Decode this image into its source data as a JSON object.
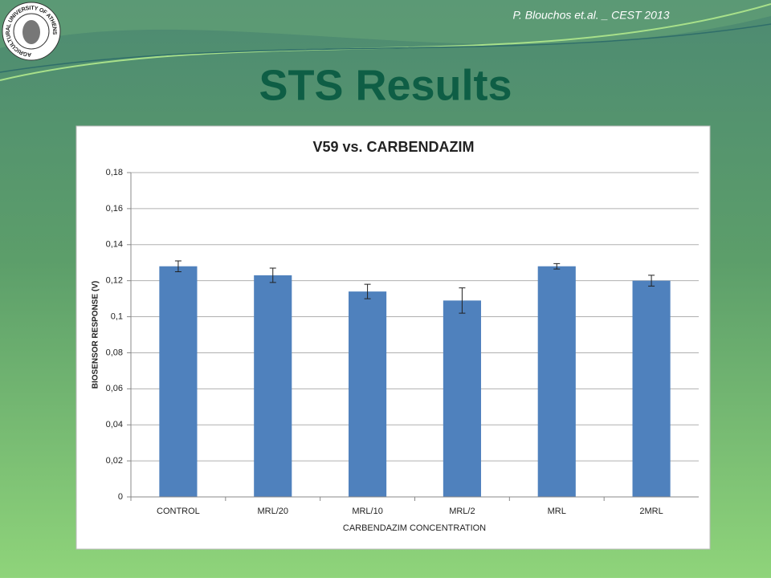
{
  "slide": {
    "author_note": "P. Blouchos et.al. _  CEST 2013",
    "title": "STS Results",
    "logo_text": "AGRICULTURAL UNIVERSITY OF ATHENS"
  },
  "chart_data": {
    "type": "bar",
    "title": "V59 vs. CARBENDAZIM",
    "xlabel": "CARBENDAZIM CONCENTRATION",
    "ylabel": "BIOSENSOR RESPONSE (V)",
    "categories": [
      "CONTROL",
      "MRL/20",
      "MRL/10",
      "MRL/2",
      "MRL",
      "2MRL"
    ],
    "values": [
      0.128,
      0.123,
      0.114,
      0.109,
      0.128,
      0.12
    ],
    "errors": [
      0.003,
      0.004,
      0.004,
      0.007,
      0.0015,
      0.003
    ],
    "color": "#4f81bd",
    "ylim": [
      0,
      0.18
    ],
    "yticks": [
      0,
      {
        "value": 0.02,
        "label": "0,02"
      },
      {
        "value": 0.04,
        "label": "0,04"
      },
      {
        "value": 0.06,
        "label": "0,06"
      },
      {
        "value": 0.08,
        "label": "0,08"
      },
      {
        "value": 0.1,
        "label": "0,1"
      },
      {
        "value": 0.12,
        "label": "0,12"
      },
      {
        "value": 0.14,
        "label": "0,14"
      },
      {
        "value": 0.16,
        "label": "0,16"
      },
      {
        "value": 0.18,
        "label": "0,18"
      }
    ],
    "grid": true
  }
}
